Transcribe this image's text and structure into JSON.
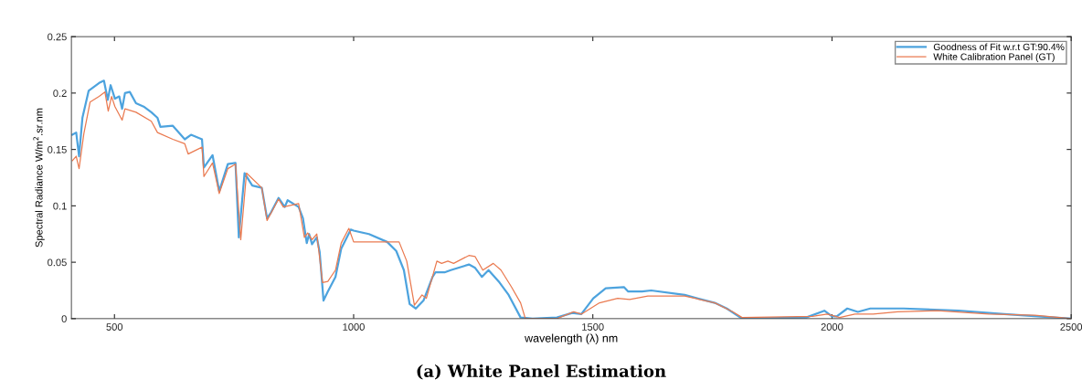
{
  "chart_data": {
    "type": "line",
    "xlabel": "wavelength (λ) nm",
    "ylabel": "Spectral Radiance W/m$^{2}$.sr.nm",
    "annotations": [
      "(a) White Panel Estimation"
    ],
    "xlim": [
      410,
      2500
    ],
    "xticks": [
      500,
      1000,
      1500,
      2000,
      2500
    ],
    "ylim": [
      0,
      0.25
    ],
    "yticks": [
      0,
      0.05,
      0.1,
      0.15,
      0.2,
      0.25
    ],
    "grid": false,
    "legend": "top right",
    "marker": "none",
    "line_style": "solid",
    "series": [
      {
        "name": "Goodness of Fit w.r.t GT:90.4%",
        "color": "#4da3de",
        "x": [
          412,
          420,
          426,
          433,
          446,
          468,
          478,
          486,
          492,
          501,
          510,
          516,
          522,
          532,
          545,
          561,
          577,
          590,
          596,
          622,
          647,
          660,
          683,
          687,
          705,
          719,
          737,
          753,
          760,
          772,
          788,
          808,
          819,
          827,
          843,
          856,
          862,
          885,
          894,
          902,
          907,
          913,
          923,
          929,
          937,
          946,
          962,
          974,
          994,
          1000,
          1032,
          1070,
          1089,
          1105,
          1117,
          1130,
          1146,
          1165,
          1171,
          1190,
          1203,
          1241,
          1254,
          1268,
          1282,
          1305,
          1324,
          1349,
          1374,
          1425,
          1457,
          1476,
          1501,
          1527,
          1565,
          1574,
          1603,
          1622,
          1692,
          1755,
          1780,
          1812,
          1946,
          1984,
          2000,
          2010,
          2032,
          2054,
          2080,
          2150,
          2264,
          2360,
          2430,
          2500
        ],
        "values": [
          0.163,
          0.165,
          0.144,
          0.178,
          0.202,
          0.209,
          0.211,
          0.194,
          0.207,
          0.195,
          0.197,
          0.186,
          0.2,
          0.201,
          0.191,
          0.188,
          0.183,
          0.178,
          0.17,
          0.171,
          0.159,
          0.163,
          0.159,
          0.134,
          0.145,
          0.113,
          0.137,
          0.138,
          0.072,
          0.129,
          0.118,
          0.116,
          0.089,
          0.094,
          0.107,
          0.099,
          0.105,
          0.099,
          0.089,
          0.067,
          0.075,
          0.066,
          0.072,
          0.059,
          0.016,
          0.024,
          0.037,
          0.062,
          0.079,
          0.078,
          0.075,
          0.068,
          0.06,
          0.043,
          0.013,
          0.009,
          0.016,
          0.037,
          0.041,
          0.041,
          0.043,
          0.048,
          0.045,
          0.037,
          0.043,
          0.032,
          0.021,
          0.001,
          0,
          0.001,
          0.005,
          0.004,
          0.018,
          0.027,
          0.028,
          0.024,
          0.024,
          0.025,
          0.021,
          0.014,
          0.009,
          0,
          0.001,
          0.007,
          0.002,
          0.002,
          0.009,
          0.006,
          0.009,
          0.009,
          0.007,
          0.004,
          0.002,
          0
        ]
      },
      {
        "name": "White Calibration Panel (GT)",
        "color": "#ea7a50",
        "x": [
          412,
          420,
          426,
          436,
          449,
          468,
          480,
          487,
          494,
          501,
          516,
          522,
          545,
          577,
          590,
          622,
          647,
          654,
          683,
          687,
          705,
          719,
          737,
          753,
          764,
          776,
          808,
          819,
          843,
          853,
          885,
          897,
          904,
          913,
          923,
          935,
          946,
          962,
          974,
          990,
          1000,
          1095,
          1111,
          1127,
          1143,
          1152,
          1174,
          1184,
          1197,
          1209,
          1241,
          1254,
          1270,
          1292,
          1308,
          1330,
          1349,
          1359,
          1425,
          1460,
          1476,
          1514,
          1552,
          1577,
          1615,
          1692,
          1755,
          1793,
          1812,
          1959,
          1990,
          2016,
          2048,
          2086,
          2137,
          2220,
          2328,
          2424,
          2500
        ],
        "values": [
          0.14,
          0.144,
          0.133,
          0.164,
          0.192,
          0.197,
          0.201,
          0.184,
          0.197,
          0.188,
          0.176,
          0.186,
          0.183,
          0.175,
          0.165,
          0.159,
          0.155,
          0.146,
          0.152,
          0.126,
          0.138,
          0.111,
          0.133,
          0.137,
          0.07,
          0.129,
          0.116,
          0.087,
          0.106,
          0.099,
          0.102,
          0.072,
          0.076,
          0.07,
          0.075,
          0.032,
          0.033,
          0.043,
          0.067,
          0.08,
          0.068,
          0.068,
          0.051,
          0.012,
          0.021,
          0.018,
          0.051,
          0.049,
          0.051,
          0.049,
          0.056,
          0.055,
          0.043,
          0.049,
          0.043,
          0.028,
          0.014,
          0,
          0,
          0.006,
          0.004,
          0.014,
          0.018,
          0.017,
          0.02,
          0.02,
          0.014,
          0.006,
          0.001,
          0.002,
          0.004,
          0.001,
          0.004,
          0.004,
          0.006,
          0.007,
          0.004,
          0.003,
          0
        ]
      }
    ]
  }
}
